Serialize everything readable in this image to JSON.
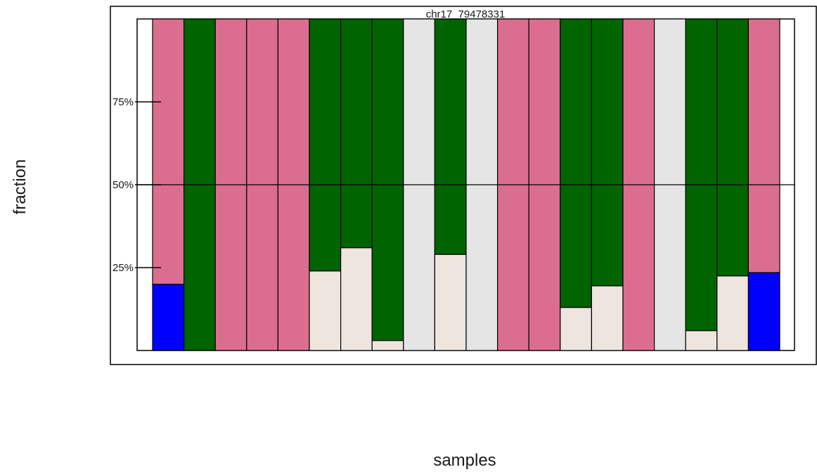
{
  "chart_data": {
    "type": "bar",
    "stacked": true,
    "title": "chr17_79478331",
    "xlabel": "samples",
    "ylabel": "fraction",
    "ylim": [
      0,
      1
    ],
    "yticks": [
      0.25,
      0.5,
      0.75
    ],
    "ytick_labels": [
      "25%",
      "50%",
      "75%"
    ],
    "reference_line": 0.5,
    "grid": false,
    "legend": "none",
    "colors": {
      "pink": "#db6e8f",
      "green": "#006400",
      "lightgray": "#e5e5e5",
      "beige": "#eee5df",
      "blue": "#0000ff"
    },
    "samples": [
      {
        "segments": [
          {
            "color": "blue",
            "value": 0.2
          },
          {
            "color": "pink",
            "value": 0.8
          }
        ]
      },
      {
        "segments": [
          {
            "color": "green",
            "value": 1.0
          }
        ]
      },
      {
        "segments": [
          {
            "color": "pink",
            "value": 1.0
          }
        ]
      },
      {
        "segments": [
          {
            "color": "pink",
            "value": 1.0
          }
        ]
      },
      {
        "segments": [
          {
            "color": "pink",
            "value": 1.0
          }
        ]
      },
      {
        "segments": [
          {
            "color": "beige",
            "value": 0.24
          },
          {
            "color": "green",
            "value": 0.76
          }
        ]
      },
      {
        "segments": [
          {
            "color": "beige",
            "value": 0.31
          },
          {
            "color": "green",
            "value": 0.69
          }
        ]
      },
      {
        "segments": [
          {
            "color": "beige",
            "value": 0.03
          },
          {
            "color": "green",
            "value": 0.97
          }
        ]
      },
      {
        "segments": [
          {
            "color": "lightgray",
            "value": 1.0
          }
        ]
      },
      {
        "segments": [
          {
            "color": "beige",
            "value": 0.29
          },
          {
            "color": "green",
            "value": 0.71
          }
        ]
      },
      {
        "segments": [
          {
            "color": "lightgray",
            "value": 1.0
          }
        ]
      },
      {
        "segments": [
          {
            "color": "pink",
            "value": 1.0
          }
        ]
      },
      {
        "segments": [
          {
            "color": "pink",
            "value": 1.0
          }
        ]
      },
      {
        "segments": [
          {
            "color": "beige",
            "value": 0.13
          },
          {
            "color": "green",
            "value": 0.87
          }
        ]
      },
      {
        "segments": [
          {
            "color": "beige",
            "value": 0.195
          },
          {
            "color": "green",
            "value": 0.805
          }
        ]
      },
      {
        "segments": [
          {
            "color": "pink",
            "value": 1.0
          }
        ]
      },
      {
        "segments": [
          {
            "color": "lightgray",
            "value": 1.0
          }
        ]
      },
      {
        "segments": [
          {
            "color": "beige",
            "value": 0.06
          },
          {
            "color": "green",
            "value": 0.94
          }
        ]
      },
      {
        "segments": [
          {
            "color": "beige",
            "value": 0.225
          },
          {
            "color": "green",
            "value": 0.775
          }
        ]
      },
      {
        "segments": [
          {
            "color": "blue",
            "value": 0.235
          },
          {
            "color": "pink",
            "value": 0.765
          }
        ]
      }
    ]
  }
}
